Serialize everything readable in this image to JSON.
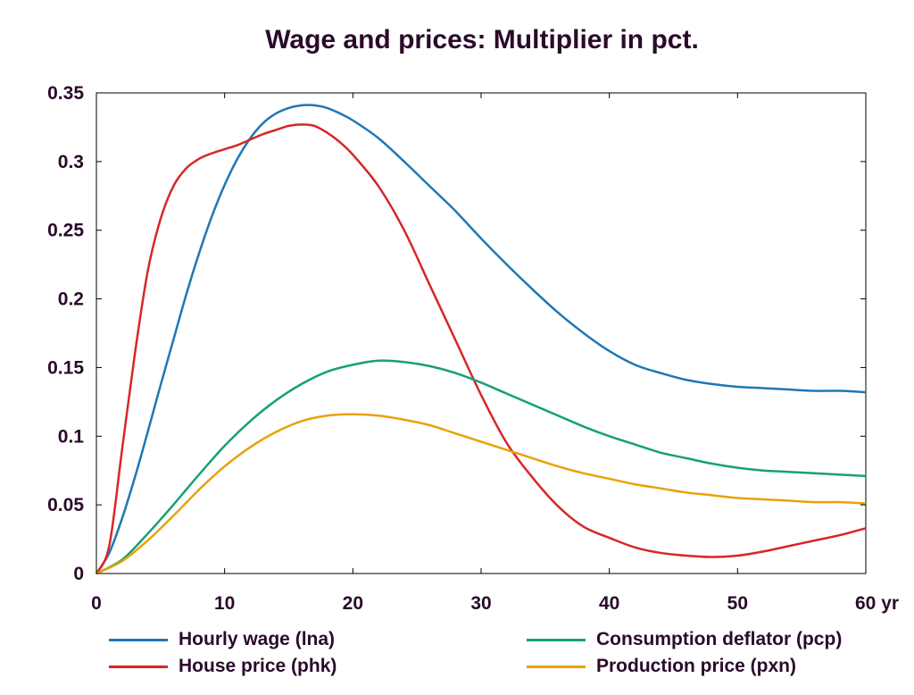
{
  "chart_data": {
    "type": "line",
    "title": "Wage and prices: Multiplier in pct.",
    "xlim": [
      0,
      60
    ],
    "ylim": [
      0,
      0.35
    ],
    "x_ticks": [
      0,
      10,
      20,
      30,
      40,
      50,
      60
    ],
    "x_tick_labels": [
      "0",
      "10",
      "20",
      "30",
      "40",
      "50",
      "60 yr"
    ],
    "y_ticks": [
      0,
      0.05,
      0.1,
      0.15,
      0.2,
      0.25,
      0.3,
      0.35
    ],
    "y_tick_labels": [
      "0",
      "0.05",
      "0.1",
      "0.15",
      "0.2",
      "0.25",
      "0.3",
      "0.35"
    ],
    "grid": false,
    "legend_position": "bottom",
    "series": [
      {
        "name": "Hourly wage (lna)",
        "color": "#1f77b4",
        "x": [
          0,
          1,
          2,
          3,
          4,
          5,
          6,
          7,
          8,
          9,
          10,
          11,
          12,
          13,
          14,
          15,
          16,
          17,
          18,
          19,
          20,
          22,
          24,
          26,
          28,
          30,
          32,
          34,
          36,
          38,
          40,
          42,
          44,
          46,
          48,
          50,
          52,
          54,
          56,
          58,
          60
        ],
        "y": [
          0,
          0.015,
          0.04,
          0.07,
          0.103,
          0.137,
          0.17,
          0.203,
          0.233,
          0.26,
          0.283,
          0.302,
          0.317,
          0.328,
          0.335,
          0.339,
          0.341,
          0.341,
          0.339,
          0.335,
          0.33,
          0.317,
          0.3,
          0.282,
          0.264,
          0.244,
          0.225,
          0.207,
          0.19,
          0.175,
          0.162,
          0.152,
          0.146,
          0.141,
          0.138,
          0.136,
          0.135,
          0.134,
          0.133,
          0.133,
          0.132
        ]
      },
      {
        "name": "House price (phk)",
        "color": "#d62728",
        "x": [
          0,
          1,
          2,
          3,
          4,
          5,
          6,
          7,
          8,
          9,
          10,
          11,
          12,
          13,
          14,
          15,
          16,
          17,
          18,
          19,
          20,
          22,
          24,
          26,
          28,
          30,
          32,
          34,
          36,
          38,
          40,
          42,
          44,
          46,
          48,
          50,
          52,
          54,
          56,
          58,
          60
        ],
        "y": [
          0,
          0.02,
          0.09,
          0.16,
          0.22,
          0.258,
          0.282,
          0.295,
          0.302,
          0.306,
          0.309,
          0.312,
          0.316,
          0.32,
          0.323,
          0.326,
          0.327,
          0.326,
          0.321,
          0.314,
          0.305,
          0.282,
          0.25,
          0.21,
          0.17,
          0.13,
          0.095,
          0.07,
          0.049,
          0.034,
          0.026,
          0.019,
          0.015,
          0.013,
          0.012,
          0.013,
          0.016,
          0.02,
          0.024,
          0.028,
          0.033
        ]
      },
      {
        "name": "Consumption deflator (pcp)",
        "color": "#16a07a",
        "x": [
          0,
          2,
          4,
          6,
          8,
          10,
          12,
          14,
          16,
          18,
          20,
          22,
          24,
          26,
          28,
          30,
          32,
          34,
          36,
          38,
          40,
          42,
          44,
          46,
          48,
          50,
          52,
          54,
          56,
          58,
          60
        ],
        "y": [
          0,
          0.01,
          0.029,
          0.05,
          0.072,
          0.093,
          0.111,
          0.126,
          0.138,
          0.147,
          0.152,
          0.155,
          0.154,
          0.151,
          0.146,
          0.139,
          0.131,
          0.123,
          0.115,
          0.107,
          0.1,
          0.094,
          0.088,
          0.084,
          0.08,
          0.077,
          0.075,
          0.074,
          0.073,
          0.072,
          0.071
        ]
      },
      {
        "name": "Production price (pxn)",
        "color": "#e8a208",
        "x": [
          0,
          2,
          4,
          6,
          8,
          10,
          12,
          14,
          16,
          18,
          20,
          22,
          24,
          26,
          28,
          30,
          32,
          34,
          36,
          38,
          40,
          42,
          44,
          46,
          48,
          50,
          52,
          54,
          56,
          58,
          60
        ],
        "y": [
          0,
          0.009,
          0.024,
          0.042,
          0.061,
          0.078,
          0.092,
          0.103,
          0.111,
          0.115,
          0.116,
          0.115,
          0.112,
          0.108,
          0.102,
          0.096,
          0.09,
          0.084,
          0.078,
          0.073,
          0.069,
          0.065,
          0.062,
          0.059,
          0.057,
          0.055,
          0.054,
          0.053,
          0.052,
          0.052,
          0.051
        ]
      }
    ]
  }
}
